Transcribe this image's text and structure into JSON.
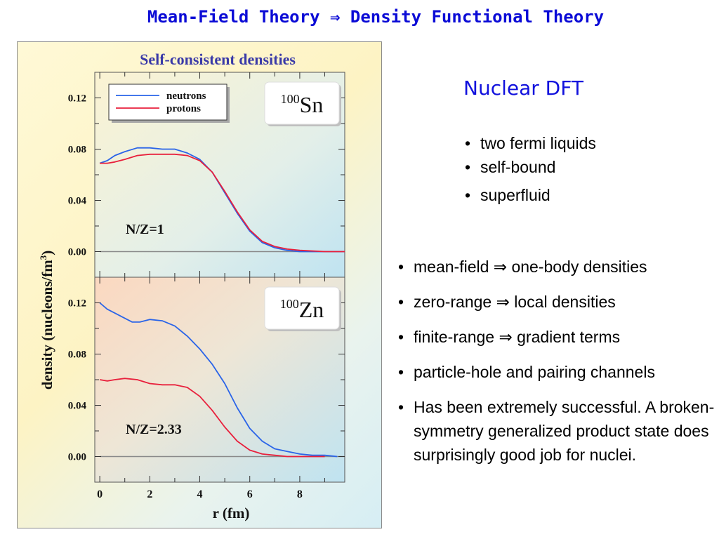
{
  "slide_title": "Mean-Field Theory ⇒ Density Functional Theory",
  "figure": {
    "title": "Self-consistent densities",
    "ylabel": "density (nucleons/fm",
    "ylabel_sup": "3",
    "ylabel_close": ")",
    "xlabel": "r (fm)",
    "legend": [
      "neutrons",
      "protons"
    ],
    "colors": {
      "neutrons": "#2a64e8",
      "protons": "#e8203c"
    }
  },
  "chart_data": [
    {
      "type": "line",
      "nucleus_mass": "100",
      "nucleus_symbol": "Sn",
      "annotation": "N/Z=1",
      "x_ticks": [
        "0",
        "2",
        "4",
        "6",
        "8"
      ],
      "y_ticks": [
        "0.00",
        "0.04",
        "0.08",
        "0.12"
      ],
      "xlim": [
        -0.2,
        9.8
      ],
      "ylim": [
        -0.02,
        0.14
      ],
      "series": [
        {
          "name": "neutrons",
          "x": [
            0,
            0.3,
            0.6,
            1,
            1.5,
            2,
            2.5,
            3,
            3.5,
            4,
            4.5,
            5,
            5.5,
            6,
            6.5,
            7,
            7.5,
            8,
            9,
            9.8
          ],
          "y": [
            0.069,
            0.071,
            0.075,
            0.078,
            0.081,
            0.081,
            0.08,
            0.08,
            0.077,
            0.072,
            0.062,
            0.046,
            0.03,
            0.016,
            0.007,
            0.003,
            0.001,
            0.0,
            0.0,
            0.0
          ]
        },
        {
          "name": "protons",
          "x": [
            0,
            0.3,
            0.6,
            1,
            1.5,
            2,
            2.5,
            3,
            3.5,
            4,
            4.5,
            5,
            5.5,
            6,
            6.5,
            7,
            7.5,
            8,
            9,
            9.8
          ],
          "y": [
            0.069,
            0.069,
            0.07,
            0.072,
            0.075,
            0.076,
            0.076,
            0.076,
            0.075,
            0.071,
            0.062,
            0.047,
            0.031,
            0.017,
            0.008,
            0.004,
            0.002,
            0.001,
            0.0,
            0.0
          ]
        }
      ]
    },
    {
      "type": "line",
      "nucleus_mass": "100",
      "nucleus_symbol": "Zn",
      "annotation": "N/Z=2.33",
      "x_ticks": [
        "0",
        "2",
        "4",
        "6",
        "8"
      ],
      "y_ticks": [
        "0.00",
        "0.04",
        "0.08",
        "0.12"
      ],
      "xlim": [
        -0.2,
        9.8
      ],
      "ylim": [
        -0.02,
        0.14
      ],
      "series": [
        {
          "name": "neutrons",
          "x": [
            0,
            0.3,
            0.6,
            1,
            1.3,
            1.6,
            2,
            2.5,
            3,
            3.5,
            4,
            4.5,
            5,
            5.5,
            6,
            6.5,
            7,
            7.5,
            8,
            8.5,
            9,
            9.5
          ],
          "y": [
            0.12,
            0.115,
            0.112,
            0.108,
            0.105,
            0.105,
            0.107,
            0.106,
            0.102,
            0.094,
            0.084,
            0.072,
            0.057,
            0.038,
            0.022,
            0.012,
            0.006,
            0.004,
            0.002,
            0.001,
            0.001,
            0.0
          ]
        },
        {
          "name": "protons",
          "x": [
            0,
            0.3,
            0.6,
            1,
            1.5,
            2,
            2.5,
            3,
            3.5,
            4,
            4.5,
            5,
            5.5,
            6,
            6.5,
            7,
            7.5,
            8,
            9
          ],
          "y": [
            0.06,
            0.059,
            0.06,
            0.061,
            0.06,
            0.057,
            0.056,
            0.056,
            0.054,
            0.047,
            0.036,
            0.023,
            0.012,
            0.005,
            0.002,
            0.001,
            0.0,
            0.0,
            0.0
          ]
        }
      ]
    }
  ],
  "nuclear_dft": {
    "heading": "Nuclear DFT",
    "bullets": [
      "two fermi liquids",
      "self-bound",
      "superfluid"
    ]
  },
  "points": [
    "mean-field  ⇒ one-body densities",
    "zero-range ⇒ local densities",
    "finite-range ⇒ gradient terms",
    "particle-hole and pairing channels",
    "Has been extremely successful. A broken-symmetry generalized product state does surprisingly good job for nuclei."
  ]
}
